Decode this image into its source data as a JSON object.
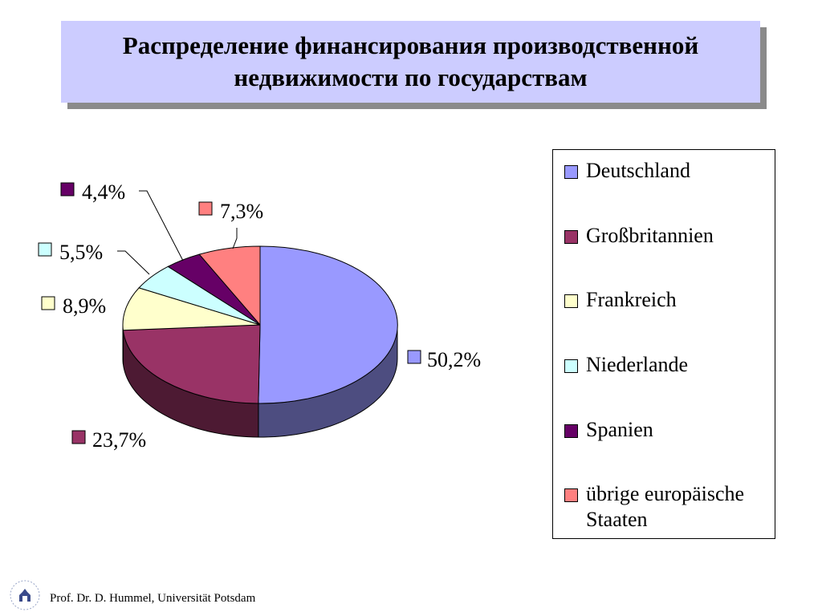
{
  "slide": {
    "title_line1": "Распределение финансирования производственной",
    "title_line2": "недвижимости по государствам",
    "footer": "Prof. Dr. D. Hummel, Universität Potsdam"
  },
  "chart_data": {
    "type": "pie",
    "three_d": true,
    "legend_placement": "right",
    "series": [
      {
        "name": "Deutschland",
        "value": 50.2,
        "label": "50,2%",
        "color": "#9999ff"
      },
      {
        "name": "Großbritannien",
        "value": 23.7,
        "label": "23,7%",
        "color": "#993366"
      },
      {
        "name": "Frankreich",
        "value": 8.9,
        "label": "8,9%",
        "color": "#ffffcc"
      },
      {
        "name": "Niederlande",
        "value": 5.5,
        "label": "5,5%",
        "color": "#ccffff"
      },
      {
        "name": "Spanien",
        "value": 4.4,
        "label": "4,4%",
        "color": "#660066"
      },
      {
        "name": "übrige europäische Staaten",
        "value": 7.3,
        "label": "7,3%",
        "color": "#ff8080"
      }
    ]
  }
}
